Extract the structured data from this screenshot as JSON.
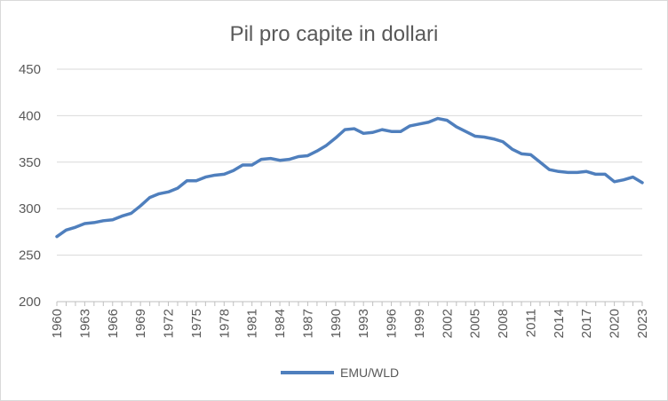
{
  "chart_data": {
    "type": "line",
    "title": "Pil pro capite in dollari",
    "xlabel": "",
    "ylabel": "",
    "ylim": [
      200,
      450
    ],
    "yticks": [
      200,
      250,
      300,
      350,
      400,
      450
    ],
    "x": [
      1960,
      1961,
      1962,
      1963,
      1964,
      1965,
      1966,
      1967,
      1968,
      1969,
      1970,
      1971,
      1972,
      1973,
      1974,
      1975,
      1976,
      1977,
      1978,
      1979,
      1980,
      1981,
      1982,
      1983,
      1984,
      1985,
      1986,
      1987,
      1988,
      1989,
      1990,
      1991,
      1992,
      1993,
      1994,
      1995,
      1996,
      1997,
      1998,
      1999,
      2000,
      2001,
      2002,
      2003,
      2004,
      2005,
      2006,
      2007,
      2008,
      2009,
      2010,
      2011,
      2012,
      2013,
      2014,
      2015,
      2016,
      2017,
      2018,
      2019,
      2020,
      2021,
      2022,
      2023
    ],
    "xtick_labels": [
      "1960",
      "1963",
      "1966",
      "1969",
      "1972",
      "1975",
      "1978",
      "1981",
      "1984",
      "1987",
      "1990",
      "1993",
      "1996",
      "1999",
      "2002",
      "2005",
      "2008",
      "2011",
      "2014",
      "2017",
      "2020",
      "2023"
    ],
    "series": [
      {
        "name": "EMU/WLD",
        "color": "#4f7fbd",
        "values": [
          270,
          277,
          280,
          284,
          285,
          287,
          288,
          292,
          295,
          303,
          312,
          316,
          318,
          322,
          330,
          330,
          334,
          336,
          337,
          341,
          347,
          347,
          353,
          354,
          352,
          353,
          356,
          357,
          362,
          368,
          376,
          385,
          386,
          381,
          382,
          385,
          383,
          383,
          389,
          391,
          393,
          397,
          395,
          388,
          383,
          378,
          377,
          375,
          372,
          364,
          359,
          358,
          350,
          342,
          340,
          339,
          339,
          340,
          337,
          337,
          329,
          331,
          334,
          328
        ]
      }
    ],
    "grid": true,
    "legend": "bottom"
  }
}
